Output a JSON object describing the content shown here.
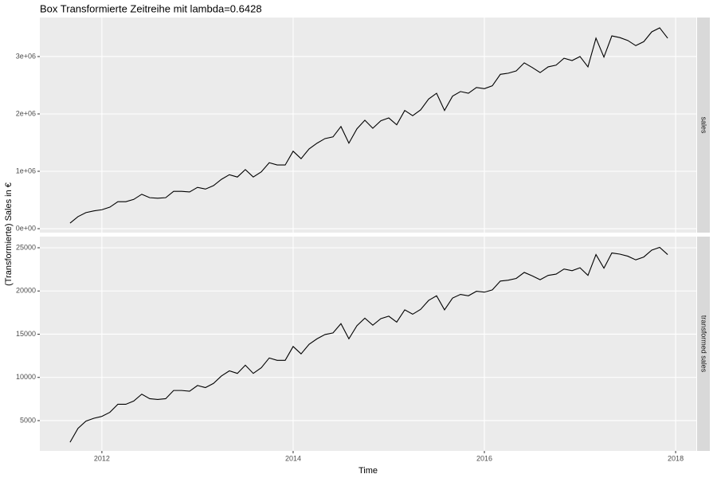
{
  "chart_data": {
    "type": "line",
    "title": "Box Transformierte Zeitreihe mit lambda=0.6428",
    "xlabel": "Time",
    "ylabel": "(Transformierte) Sales in €",
    "x": [
      2011.667,
      2011.75,
      2011.833,
      2011.917,
      2012,
      2012.083,
      2012.167,
      2012.25,
      2012.333,
      2012.417,
      2012.5,
      2012.583,
      2012.667,
      2012.75,
      2012.833,
      2012.917,
      2013,
      2013.083,
      2013.167,
      2013.25,
      2013.333,
      2013.417,
      2013.5,
      2013.583,
      2013.667,
      2013.75,
      2013.833,
      2013.917,
      2014,
      2014.083,
      2014.167,
      2014.25,
      2014.333,
      2014.417,
      2014.5,
      2014.583,
      2014.667,
      2014.75,
      2014.833,
      2014.917,
      2015,
      2015.083,
      2015.167,
      2015.25,
      2015.333,
      2015.417,
      2015.5,
      2015.583,
      2015.667,
      2015.75,
      2015.833,
      2015.917,
      2016,
      2016.083,
      2016.167,
      2016.25,
      2016.333,
      2016.417,
      2016.5,
      2016.583,
      2016.667,
      2016.75,
      2016.833,
      2016.917,
      2017,
      2017.083,
      2017.167,
      2017.25,
      2017.333,
      2017.417,
      2017.5,
      2017.583,
      2017.667,
      2017.75,
      2017.833,
      2017.917
    ],
    "xlim": [
      2011.351,
      2018.216
    ],
    "xticks": [
      2012,
      2014,
      2016,
      2018
    ],
    "grid": true,
    "panels": [
      {
        "label": "sales",
        "ylim": [
          -69000,
          3680000
        ],
        "yticks": [
          {
            "value": 0,
            "label": "0e+00"
          },
          {
            "value": 1000000,
            "label": "1e+06"
          },
          {
            "value": 2000000,
            "label": "2e+06"
          },
          {
            "value": 3000000,
            "label": "3e+06"
          }
        ],
        "series": [
          {
            "color": "#000000",
            "values": [
              97000,
              210000,
              280000,
              310000,
              330000,
              375000,
              470000,
              470000,
              510000,
              600000,
              540000,
              530000,
              540000,
              650000,
              650000,
              640000,
              720000,
              690000,
              750000,
              860000,
              940000,
              900000,
              1030000,
              900000,
              990000,
              1150000,
              1110000,
              1110000,
              1350000,
              1220000,
              1390000,
              1490000,
              1570000,
              1600000,
              1780000,
              1490000,
              1740000,
              1890000,
              1750000,
              1880000,
              1930000,
              1810000,
              2060000,
              1970000,
              2070000,
              2260000,
              2360000,
              2060000,
              2310000,
              2390000,
              2360000,
              2460000,
              2440000,
              2490000,
              2690000,
              2710000,
              2750000,
              2890000,
              2810000,
              2720000,
              2820000,
              2850000,
              2970000,
              2930000,
              3000000,
              2820000,
              3320000,
              2990000,
              3360000,
              3330000,
              3280000,
              3190000,
              3260000,
              3430000,
              3500000,
              3320000
            ]
          }
        ]
      },
      {
        "label": "transformed sales",
        "ylim": [
          1495,
          26290
        ],
        "yticks": [
          5000,
          10000,
          15000,
          20000,
          25000
        ],
        "series": [
          {
            "color": "#000000",
            "values": [
              2499,
              4105,
              4940,
              5275,
              5490,
              5960,
              6891,
              6891,
              7263,
              8062,
              7534,
              7444,
              7534,
              8489,
              8489,
              8404,
              9064,
              8820,
              9306,
              10162,
              10759,
              10463,
              11411,
              10463,
              11124,
              12249,
              11973,
              11973,
              13577,
              12723,
              13836,
              14467,
              14962,
              15145,
              16218,
              14467,
              15983,
              16857,
              16043,
              16799,
              17084,
              16394,
              17816,
              17311,
              17870,
              18909,
              19444,
              17816,
              19177,
              19602,
              19444,
              19968,
              19864,
              20124,
              21149,
              21250,
              21452,
              22148,
              21751,
              21300,
              21801,
              21950,
              22541,
              22344,
              22685,
              21801,
              24211,
              22637,
              24399,
              24261,
              24024,
              23599,
              23930,
              24726,
              25050,
              24211
            ]
          }
        ]
      }
    ]
  }
}
